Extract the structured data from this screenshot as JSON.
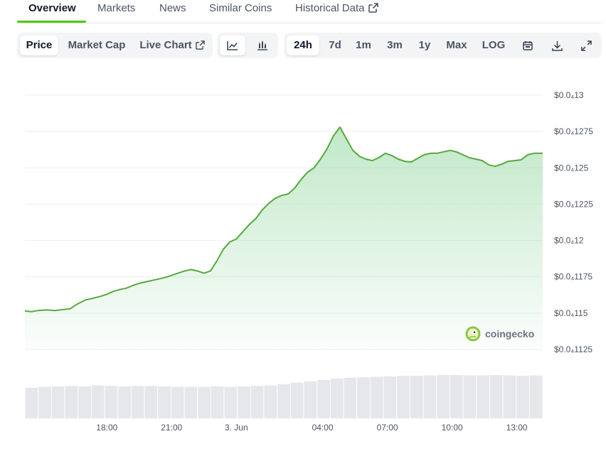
{
  "tabs": [
    {
      "label": "Overview",
      "active": true
    },
    {
      "label": "Markets"
    },
    {
      "label": "News"
    },
    {
      "label": "Similar Coins"
    },
    {
      "label": "Historical Data",
      "external": true
    }
  ],
  "toolbar": {
    "metrics": [
      {
        "label": "Price",
        "selected": true
      },
      {
        "label": "Market Cap"
      },
      {
        "label": "Live Chart",
        "external": true
      }
    ],
    "chart_styles": [
      {
        "icon": "line-chart-icon",
        "selected": true
      },
      {
        "icon": "candlestick-chart-icon"
      }
    ],
    "ranges": [
      {
        "label": "24h",
        "selected": true
      },
      {
        "label": "7d"
      },
      {
        "label": "1m"
      },
      {
        "label": "3m"
      },
      {
        "label": "1y"
      },
      {
        "label": "Max"
      },
      {
        "label": "LOG"
      }
    ],
    "actions": [
      "calendar-icon",
      "download-icon",
      "fullscreen-icon"
    ]
  },
  "watermark": {
    "label": "coingecko"
  },
  "colors": {
    "accent": "#4bcc00",
    "line": "#57a83f",
    "fill": "#8dd59a",
    "volume": "#e5e7eb"
  },
  "chart_data": {
    "type": "area",
    "y_axis_side": "right",
    "y_ticks": [
      {
        "value": 1.3e-05,
        "label": "$0.0₄13"
      },
      {
        "value": 1.275e-05,
        "label": "$0.0₄1275"
      },
      {
        "value": 1.25e-05,
        "label": "$0.0₄125"
      },
      {
        "value": 1.225e-05,
        "label": "$0.0₄1225"
      },
      {
        "value": 1.2e-05,
        "label": "$0.0₄12"
      },
      {
        "value": 1.175e-05,
        "label": "$0.0₄1175"
      },
      {
        "value": 1.15e-05,
        "label": "$0.0₄115"
      },
      {
        "value": 1.125e-05,
        "label": "$0.0₄1125"
      }
    ],
    "ylim": [
      1.125e-05,
      1.3e-05
    ],
    "x_ticks": [
      "18:00",
      "21:00",
      "3. Jun",
      "04:00",
      "07:00",
      "10:00",
      "13:00"
    ],
    "x_tick_hours": [
      3.8,
      6.8,
      9.8,
      13.8,
      16.8,
      19.8,
      22.8
    ],
    "xlim_hours": [
      0,
      24
    ],
    "grid": true,
    "series": [
      {
        "x_hours": [
          0,
          0.3,
          0.6,
          1.0,
          1.4,
          1.8,
          2.1,
          2.4,
          2.8,
          3.1,
          3.5,
          3.8,
          4.1,
          4.4,
          4.7,
          5.0,
          5.3,
          5.6,
          5.9,
          6.2,
          6.5,
          6.8,
          7.1,
          7.4,
          7.7,
          8.0,
          8.3,
          8.6,
          8.9,
          9.2,
          9.5,
          9.8,
          10.1,
          10.4,
          10.7,
          11.0,
          11.3,
          11.6,
          11.9,
          12.2,
          12.5,
          12.8,
          13.1,
          13.4,
          13.7,
          14.0,
          14.3,
          14.6,
          14.9,
          15.2,
          15.5,
          15.8,
          16.1,
          16.4,
          16.7,
          17.0,
          17.3,
          17.6,
          17.9,
          18.2,
          18.5,
          18.8,
          19.1,
          19.4,
          19.7,
          20.0,
          20.3,
          20.6,
          20.9,
          21.2,
          21.5,
          21.8,
          22.1,
          22.4,
          22.7,
          23.0,
          23.3,
          23.6,
          24.0
        ],
        "values": [
          1.1515e-05,
          1.151e-05,
          1.1518e-05,
          1.1522e-05,
          1.1518e-05,
          1.1525e-05,
          1.153e-05,
          1.156e-05,
          1.159e-05,
          1.16e-05,
          1.1615e-05,
          1.163e-05,
          1.165e-05,
          1.1662e-05,
          1.1672e-05,
          1.169e-05,
          1.1705e-05,
          1.1715e-05,
          1.1725e-05,
          1.1735e-05,
          1.1745e-05,
          1.176e-05,
          1.1775e-05,
          1.179e-05,
          1.18e-05,
          1.179e-05,
          1.1775e-05,
          1.179e-05,
          1.186e-05,
          1.194e-05,
          1.199e-05,
          1.201e-05,
          1.206e-05,
          1.211e-05,
          1.215e-05,
          1.221e-05,
          1.2255e-05,
          1.229e-05,
          1.231e-05,
          1.232e-05,
          1.236e-05,
          1.242e-05,
          1.247e-05,
          1.25e-05,
          1.256e-05,
          1.263e-05,
          1.272e-05,
          1.278e-05,
          1.27e-05,
          1.262e-05,
          1.258e-05,
          1.256e-05,
          1.255e-05,
          1.257e-05,
          1.26e-05,
          1.2585e-05,
          1.256e-05,
          1.2545e-05,
          1.254e-05,
          1.2565e-05,
          1.259e-05,
          1.26e-05,
          1.26e-05,
          1.261e-05,
          1.262e-05,
          1.261e-05,
          1.259e-05,
          1.257e-05,
          1.256e-05,
          1.255e-05,
          1.252e-05,
          1.251e-05,
          1.2525e-05,
          1.2545e-05,
          1.255e-05,
          1.2555e-05,
          1.259e-05,
          1.26e-05,
          1.26e-05
        ]
      }
    ],
    "volume": {
      "note": "relative bar heights",
      "values": [
        0.58,
        0.6,
        0.61,
        0.62,
        0.61,
        0.63,
        0.62,
        0.61,
        0.62,
        0.62,
        0.61,
        0.6,
        0.6,
        0.6,
        0.61,
        0.6,
        0.61,
        0.62,
        0.63,
        0.66,
        0.69,
        0.72,
        0.75,
        0.78,
        0.8,
        0.81,
        0.82,
        0.83,
        0.84,
        0.84,
        0.85,
        0.86,
        0.86,
        0.85,
        0.85,
        0.86,
        0.85,
        0.84,
        0.85
      ]
    }
  }
}
